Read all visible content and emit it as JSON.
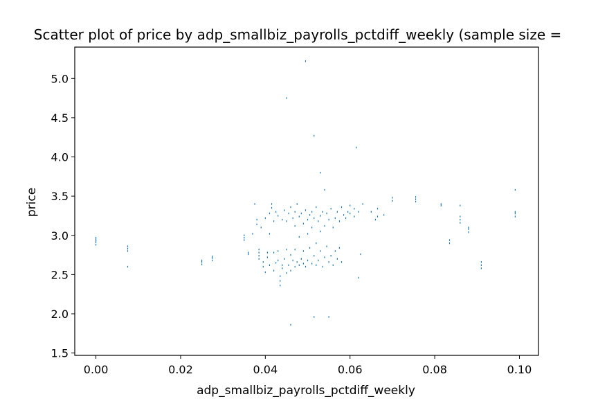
{
  "chart_data": {
    "type": "scatter",
    "title": "Scatter plot of price by adp_smallbiz_payrolls_pctdiff_weekly (sample size =",
    "xlabel": "adp_smallbiz_payrolls_pctdiff_weekly",
    "ylabel": "price",
    "xlim": [
      -0.005,
      0.1045
    ],
    "ylim": [
      1.47,
      5.4
    ],
    "xticks": [
      0.0,
      0.02,
      0.04,
      0.06,
      0.08,
      0.1
    ],
    "xtick_labels": [
      "0.00",
      "0.02",
      "0.04",
      "0.06",
      "0.08",
      "0.10"
    ],
    "yticks": [
      1.5,
      2.0,
      2.5,
      3.0,
      3.5,
      4.0,
      4.5,
      5.0
    ],
    "ytick_labels": [
      "1.5",
      "2.0",
      "2.5",
      "3.0",
      "3.5",
      "4.0",
      "4.5",
      "5.0"
    ],
    "grid": false,
    "marker_color": "#1f77b4",
    "points": [
      [
        0.0,
        2.88
      ],
      [
        0.0,
        2.91
      ],
      [
        0.0,
        2.93
      ],
      [
        0.0,
        2.95
      ],
      [
        0.0,
        2.97
      ],
      [
        0.0075,
        2.6
      ],
      [
        0.0075,
        2.8
      ],
      [
        0.0075,
        2.83
      ],
      [
        0.0075,
        2.86
      ],
      [
        0.025,
        2.63
      ],
      [
        0.025,
        2.66
      ],
      [
        0.025,
        2.68
      ],
      [
        0.0275,
        2.68
      ],
      [
        0.0275,
        2.71
      ],
      [
        0.0275,
        2.73
      ],
      [
        0.035,
        2.94
      ],
      [
        0.035,
        2.97
      ],
      [
        0.035,
        3.0
      ],
      [
        0.036,
        2.76
      ],
      [
        0.036,
        2.78
      ],
      [
        0.037,
        3.02
      ],
      [
        0.0375,
        3.4
      ],
      [
        0.038,
        3.2
      ],
      [
        0.038,
        3.14
      ],
      [
        0.0385,
        2.7
      ],
      [
        0.0385,
        2.74
      ],
      [
        0.0385,
        2.78
      ],
      [
        0.0385,
        2.82
      ],
      [
        0.039,
        3.1
      ],
      [
        0.0395,
        2.6
      ],
      [
        0.0395,
        2.66
      ],
      [
        0.04,
        3.22
      ],
      [
        0.04,
        2.53
      ],
      [
        0.0405,
        2.72
      ],
      [
        0.0405,
        2.78
      ],
      [
        0.041,
        3.28
      ],
      [
        0.041,
        2.62
      ],
      [
        0.041,
        3.02
      ],
      [
        0.0415,
        3.35
      ],
      [
        0.0415,
        3.4
      ],
      [
        0.042,
        3.18
      ],
      [
        0.042,
        2.55
      ],
      [
        0.042,
        2.78
      ],
      [
        0.0425,
        3.3
      ],
      [
        0.0425,
        2.65
      ],
      [
        0.043,
        3.25
      ],
      [
        0.043,
        2.68
      ],
      [
        0.043,
        2.8
      ],
      [
        0.0435,
        2.48
      ],
      [
        0.0435,
        2.42
      ],
      [
        0.0435,
        2.36
      ],
      [
        0.044,
        3.2
      ],
      [
        0.044,
        2.58
      ],
      [
        0.044,
        2.62
      ],
      [
        0.0445,
        3.32
      ],
      [
        0.0445,
        2.7
      ],
      [
        0.045,
        3.18
      ],
      [
        0.045,
        2.82
      ],
      [
        0.045,
        2.52
      ],
      [
        0.045,
        4.75
      ],
      [
        0.0455,
        3.28
      ],
      [
        0.0455,
        2.62
      ],
      [
        0.046,
        3.36
      ],
      [
        0.046,
        2.75
      ],
      [
        0.046,
        2.55
      ],
      [
        0.046,
        1.86
      ],
      [
        0.0465,
        3.22
      ],
      [
        0.0465,
        2.68
      ],
      [
        0.047,
        3.12
      ],
      [
        0.047,
        3.3
      ],
      [
        0.047,
        2.6
      ],
      [
        0.047,
        2.82
      ],
      [
        0.0475,
        3.4
      ],
      [
        0.0475,
        2.66
      ],
      [
        0.048,
        3.24
      ],
      [
        0.048,
        2.62
      ],
      [
        0.048,
        2.98
      ],
      [
        0.0485,
        3.28
      ],
      [
        0.0485,
        2.7
      ],
      [
        0.049,
        3.15
      ],
      [
        0.049,
        2.64
      ],
      [
        0.049,
        2.8
      ],
      [
        0.0495,
        3.32
      ],
      [
        0.0495,
        2.6
      ],
      [
        0.0495,
        5.22
      ],
      [
        0.05,
        3.2
      ],
      [
        0.05,
        2.68
      ],
      [
        0.05,
        3.02
      ],
      [
        0.0505,
        3.26
      ],
      [
        0.0505,
        2.84
      ],
      [
        0.051,
        3.1
      ],
      [
        0.051,
        2.64
      ],
      [
        0.051,
        3.3
      ],
      [
        0.0515,
        3.22
      ],
      [
        0.0515,
        2.74
      ],
      [
        0.0515,
        4.27
      ],
      [
        0.0515,
        1.96
      ],
      [
        0.052,
        3.36
      ],
      [
        0.052,
        2.62
      ],
      [
        0.052,
        2.9
      ],
      [
        0.0525,
        3.18
      ],
      [
        0.0525,
        2.68
      ],
      [
        0.053,
        3.25
      ],
      [
        0.053,
        2.8
      ],
      [
        0.053,
        3.05
      ],
      [
        0.053,
        3.8
      ],
      [
        0.0535,
        3.3
      ],
      [
        0.0535,
        2.6
      ],
      [
        0.054,
        3.12
      ],
      [
        0.054,
        2.72
      ],
      [
        0.054,
        3.58
      ],
      [
        0.0545,
        3.28
      ],
      [
        0.0545,
        2.86
      ],
      [
        0.055,
        3.2
      ],
      [
        0.055,
        2.66
      ],
      [
        0.055,
        1.96
      ],
      [
        0.0555,
        3.34
      ],
      [
        0.0555,
        2.74
      ],
      [
        0.056,
        3.1
      ],
      [
        0.056,
        2.62
      ],
      [
        0.0565,
        3.22
      ],
      [
        0.0565,
        2.8
      ],
      [
        0.057,
        3.3
      ],
      [
        0.057,
        2.7
      ],
      [
        0.0575,
        3.18
      ],
      [
        0.0575,
        2.84
      ],
      [
        0.058,
        3.36
      ],
      [
        0.058,
        2.66
      ],
      [
        0.0585,
        3.26
      ],
      [
        0.059,
        3.22
      ],
      [
        0.0595,
        3.3
      ],
      [
        0.06,
        3.38
      ],
      [
        0.06,
        3.28
      ],
      [
        0.061,
        3.34
      ],
      [
        0.061,
        3.24
      ],
      [
        0.0615,
        4.12
      ],
      [
        0.062,
        3.3
      ],
      [
        0.062,
        2.46
      ],
      [
        0.0625,
        2.76
      ],
      [
        0.063,
        3.4
      ],
      [
        0.065,
        3.3
      ],
      [
        0.066,
        3.2
      ],
      [
        0.0665,
        3.24
      ],
      [
        0.0665,
        3.34
      ],
      [
        0.068,
        3.26
      ],
      [
        0.07,
        3.44
      ],
      [
        0.07,
        3.48
      ],
      [
        0.0755,
        3.43
      ],
      [
        0.0755,
        3.46
      ],
      [
        0.0755,
        3.49
      ],
      [
        0.0815,
        3.38
      ],
      [
        0.0815,
        3.4
      ],
      [
        0.0835,
        2.9
      ],
      [
        0.0835,
        2.94
      ],
      [
        0.086,
        3.16
      ],
      [
        0.086,
        3.2
      ],
      [
        0.086,
        3.24
      ],
      [
        0.086,
        3.38
      ],
      [
        0.088,
        3.04
      ],
      [
        0.088,
        3.08
      ],
      [
        0.088,
        3.1
      ],
      [
        0.091,
        2.58
      ],
      [
        0.091,
        2.62
      ],
      [
        0.091,
        2.66
      ],
      [
        0.099,
        3.24
      ],
      [
        0.099,
        3.28
      ],
      [
        0.099,
        3.3
      ],
      [
        0.099,
        3.58
      ]
    ]
  }
}
